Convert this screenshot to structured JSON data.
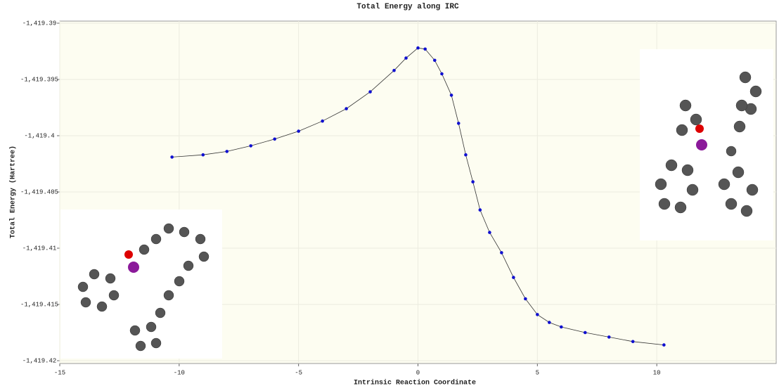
{
  "chart_data": {
    "type": "line",
    "title": "Total Energy along IRC",
    "x_label": "Intrinsic Reaction Coordinate",
    "y_label": "Total Energy (Hartree)",
    "xlim": [
      -15,
      15
    ],
    "xticks": [
      -15,
      -10,
      -5,
      0,
      5,
      10
    ],
    "ylim": [
      -1419.42,
      -1419.39
    ],
    "yticks": [
      {
        "value": -1419.42,
        "label": "-1,419.42"
      },
      {
        "value": -1419.415,
        "label": "-1,419.415"
      },
      {
        "value": -1419.41,
        "label": "-1,419.41"
      },
      {
        "value": -1419.405,
        "label": "-1,419.405"
      },
      {
        "value": -1419.4,
        "label": "-1,419.4"
      },
      {
        "value": -1419.395,
        "label": "-1,419.395"
      },
      {
        "value": -1419.39,
        "label": "-1,419.39"
      }
    ],
    "grid": true,
    "x": [
      -10.3,
      -9,
      -8,
      -7,
      -6,
      -5,
      -4,
      -3,
      -2,
      -1,
      -0.5,
      0,
      0.3,
      0.7,
      1.0,
      1.4,
      1.7,
      2.0,
      2.3,
      2.6,
      3.0,
      3.5,
      4.0,
      4.5,
      5.0,
      5.5,
      6,
      7,
      8,
      9,
      10.3
    ],
    "series": [
      {
        "color": "#1010d0",
        "line_color": "#333333",
        "values": [
          -1419.4019,
          -1419.4017,
          -1419.4014,
          -1419.4009,
          -1419.4003,
          -1419.3996,
          -1419.3987,
          -1419.3976,
          -1419.3961,
          -1419.3942,
          -1419.3931,
          -1419.3922,
          -1419.3923,
          -1419.3933,
          -1419.3945,
          -1419.3964,
          -1419.3989,
          -1419.4017,
          -1419.4041,
          -1419.4066,
          -1419.4086,
          -1419.4104,
          -1419.4126,
          -1419.4145,
          -1419.4159,
          -1419.4166,
          -1419.417,
          -1419.4175,
          -1419.4179,
          -1419.4183,
          -1419.4186
        ]
      }
    ]
  }
}
